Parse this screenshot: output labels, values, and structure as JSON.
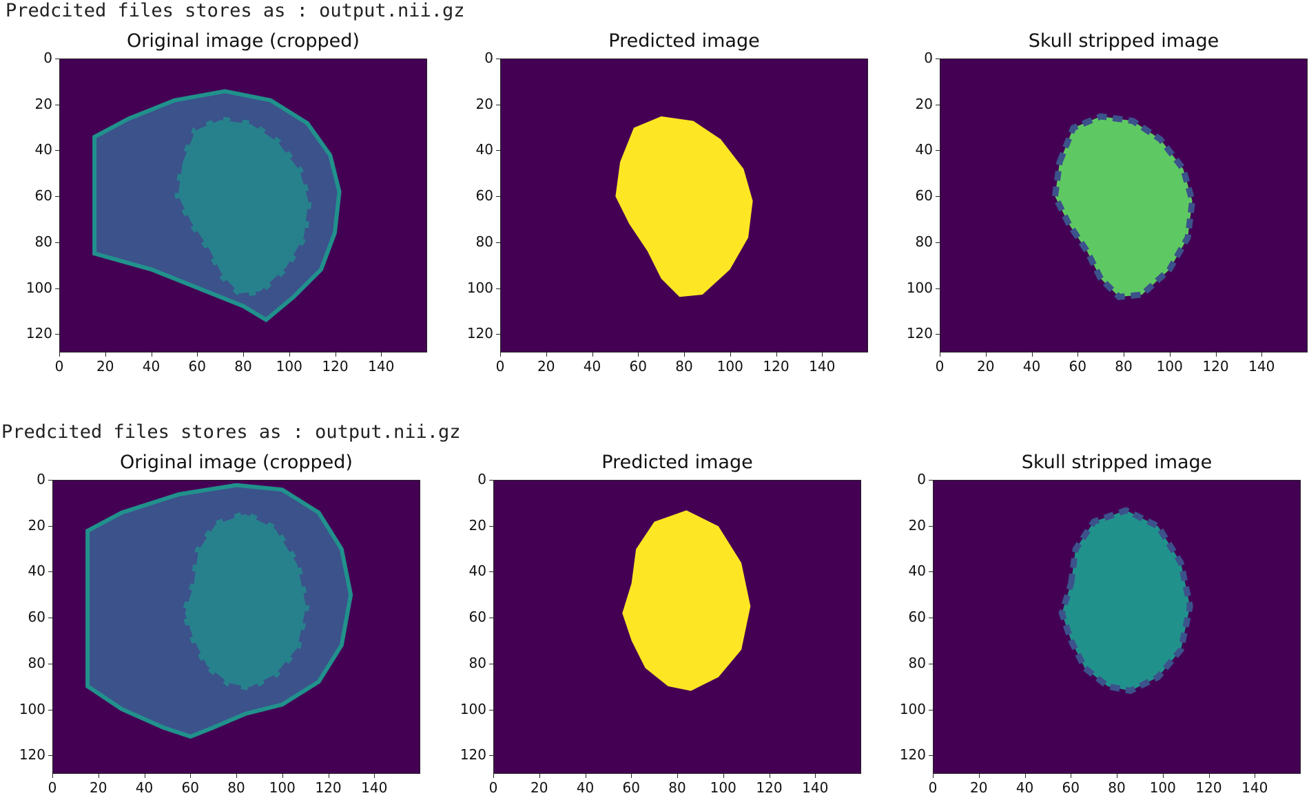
{
  "outputs": [
    {
      "console_text": "Predcited files stores as : output.nii.gz",
      "panels": [
        {
          "title": "Original image (cropped)",
          "kind": "original",
          "variant": 1
        },
        {
          "title": "Predicted image",
          "kind": "mask",
          "variant": 1
        },
        {
          "title": "Skull stripped image",
          "kind": "stripped",
          "variant": 1
        }
      ]
    },
    {
      "console_text": "Predcited files stores as : output.nii.gz",
      "panels": [
        {
          "title": "Original image (cropped)",
          "kind": "original",
          "variant": 2
        },
        {
          "title": "Predicted image",
          "kind": "mask",
          "variant": 2
        },
        {
          "title": "Skull stripped image",
          "kind": "stripped",
          "variant": 2
        }
      ]
    }
  ],
  "axes": {
    "x_ticks": [
      "0",
      "20",
      "40",
      "60",
      "80",
      "100",
      "120",
      "140"
    ],
    "y_ticks": [
      "0",
      "20",
      "40",
      "60",
      "80",
      "100",
      "120"
    ],
    "x_range": [
      0,
      160
    ],
    "y_range": [
      0,
      128
    ],
    "colormap": "viridis",
    "colors": {
      "background": "#440154",
      "dark_blue": "#3b528b",
      "teal": "#21918c",
      "green": "#5ec962",
      "yellow": "#fde725"
    }
  }
}
